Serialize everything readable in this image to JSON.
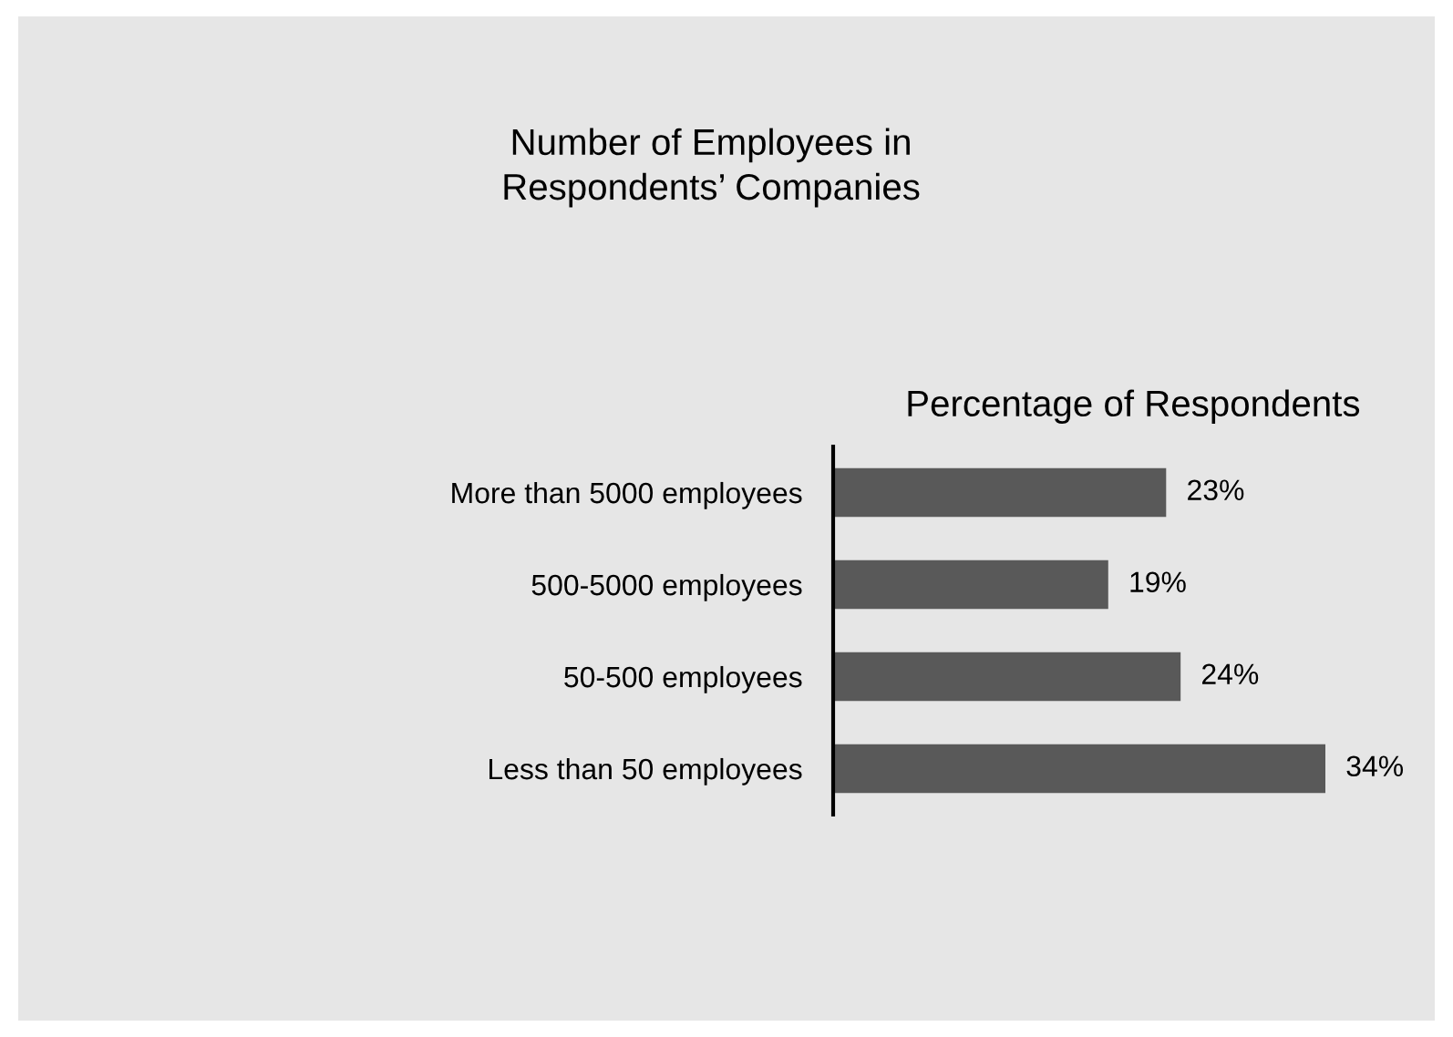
{
  "chart_data": {
    "type": "bar",
    "orientation": "horizontal",
    "title": "Number of Employees in\nRespondents’ Companies",
    "xlabel": "Percentage of Respondents",
    "categories": [
      "More than 5000 employees",
      "500-5000 employees",
      "50-500 employees",
      "Less than 50 employees"
    ],
    "values": [
      23,
      19,
      24,
      34
    ],
    "value_labels": [
      "23%",
      "19%",
      "24%",
      "34%"
    ],
    "color": "#595959",
    "tick_labels": "y",
    "grid": false,
    "legend": false
  }
}
